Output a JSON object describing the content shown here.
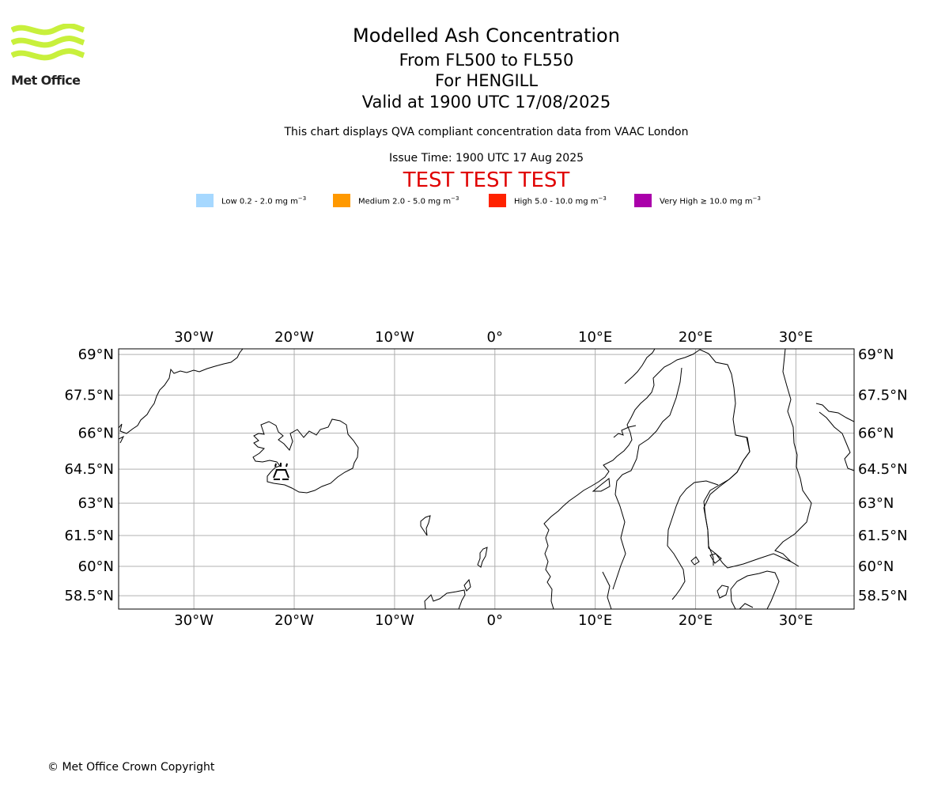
{
  "logo": {
    "text": "Met Office",
    "colors": {
      "waves": "#c8f03c",
      "text": "#222222"
    }
  },
  "header": {
    "title": "Modelled Ash Concentration",
    "levels": "From FL500 to FL550",
    "volcano": "For HENGILL",
    "valid": "Valid at 1900 UTC 17/08/2025",
    "description": "This chart displays QVA compliant concentration data from VAAC London",
    "issue_time": "Issue Time: 1900 UTC 17 Aug 2025",
    "test_banner": "TEST TEST TEST",
    "test_color": "#e00000"
  },
  "legend": [
    {
      "label": "Low 0.2 - 2.0 mg m",
      "sup": "−3",
      "color": "#a6d8ff"
    },
    {
      "label": "Medium 2.0 - 5.0 mg m",
      "sup": "−3",
      "color": "#ff9900"
    },
    {
      "label": "High 5.0 - 10.0 mg m",
      "sup": "−3",
      "color": "#ff2200"
    },
    {
      "label": "Very High  ≥  10.0 mg m",
      "sup": "−3",
      "color": "#aa00aa"
    }
  ],
  "map": {
    "lon_range": [
      -37.5,
      35.8
    ],
    "lat_range": [
      57.8,
      69.2
    ],
    "lon_ticks": [
      {
        "value": -30,
        "label": "30°W"
      },
      {
        "value": -20,
        "label": "20°W"
      },
      {
        "value": -10,
        "label": "10°W"
      },
      {
        "value": 0,
        "label": "0°"
      },
      {
        "value": 10,
        "label": "10°E"
      },
      {
        "value": 20,
        "label": "20°E"
      },
      {
        "value": 30,
        "label": "30°E"
      }
    ],
    "lat_ticks": [
      {
        "value": 69,
        "label": "69°N"
      },
      {
        "value": 67.5,
        "label": "67.5°N"
      },
      {
        "value": 66,
        "label": "66°N"
      },
      {
        "value": 64.5,
        "label": "64.5°N"
      },
      {
        "value": 63,
        "label": "63°N"
      },
      {
        "value": 61.5,
        "label": "61.5°N"
      },
      {
        "value": 60,
        "label": "60°N"
      },
      {
        "value": 58.5,
        "label": "58.5°N"
      }
    ],
    "volcano_location": {
      "name": "HENGILL",
      "lon": -21.3,
      "lat": 64.1
    },
    "gridline_color": "#b0b0b0",
    "coast_color": "#000000"
  },
  "footer": {
    "copyright": "© Met Office Crown Copyright"
  }
}
